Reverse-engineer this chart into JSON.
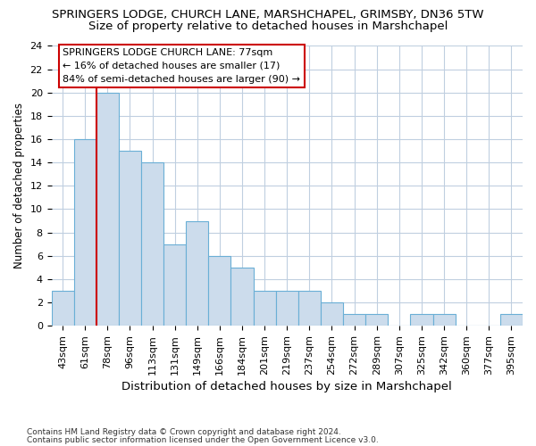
{
  "title1": "SPRINGERS LODGE, CHURCH LANE, MARSHCHAPEL, GRIMSBY, DN36 5TW",
  "title2": "Size of property relative to detached houses in Marshchapel",
  "xlabel": "Distribution of detached houses by size in Marshchapel",
  "ylabel": "Number of detached properties",
  "categories": [
    "43sqm",
    "61sqm",
    "78sqm",
    "96sqm",
    "113sqm",
    "131sqm",
    "149sqm",
    "166sqm",
    "184sqm",
    "201sqm",
    "219sqm",
    "237sqm",
    "254sqm",
    "272sqm",
    "289sqm",
    "307sqm",
    "325sqm",
    "342sqm",
    "360sqm",
    "377sqm",
    "395sqm"
  ],
  "values": [
    3,
    16,
    20,
    15,
    14,
    7,
    9,
    6,
    5,
    3,
    3,
    3,
    2,
    1,
    1,
    0,
    1,
    1,
    0,
    0,
    1
  ],
  "bar_color": "#ccdcec",
  "bar_edge_color": "#6aafd6",
  "red_line_index": 2,
  "red_line_color": "#cc0000",
  "annotation_text": "SPRINGERS LODGE CHURCH LANE: 77sqm\n← 16% of detached houses are smaller (17)\n84% of semi-detached houses are larger (90) →",
  "annotation_box_color": "#ffffff",
  "annotation_box_edge": "#cc0000",
  "ylim": [
    0,
    24
  ],
  "yticks": [
    0,
    2,
    4,
    6,
    8,
    10,
    12,
    14,
    16,
    18,
    20,
    22,
    24
  ],
  "footnote1": "Contains HM Land Registry data © Crown copyright and database right 2024.",
  "footnote2": "Contains public sector information licensed under the Open Government Licence v3.0.",
  "background_color": "#ffffff",
  "grid_color": "#c0cfe0",
  "title1_fontsize": 9.5,
  "title2_fontsize": 9.5,
  "xlabel_fontsize": 9.5,
  "ylabel_fontsize": 8.5,
  "tick_fontsize": 8,
  "annot_fontsize": 8,
  "footnote_fontsize": 6.5
}
